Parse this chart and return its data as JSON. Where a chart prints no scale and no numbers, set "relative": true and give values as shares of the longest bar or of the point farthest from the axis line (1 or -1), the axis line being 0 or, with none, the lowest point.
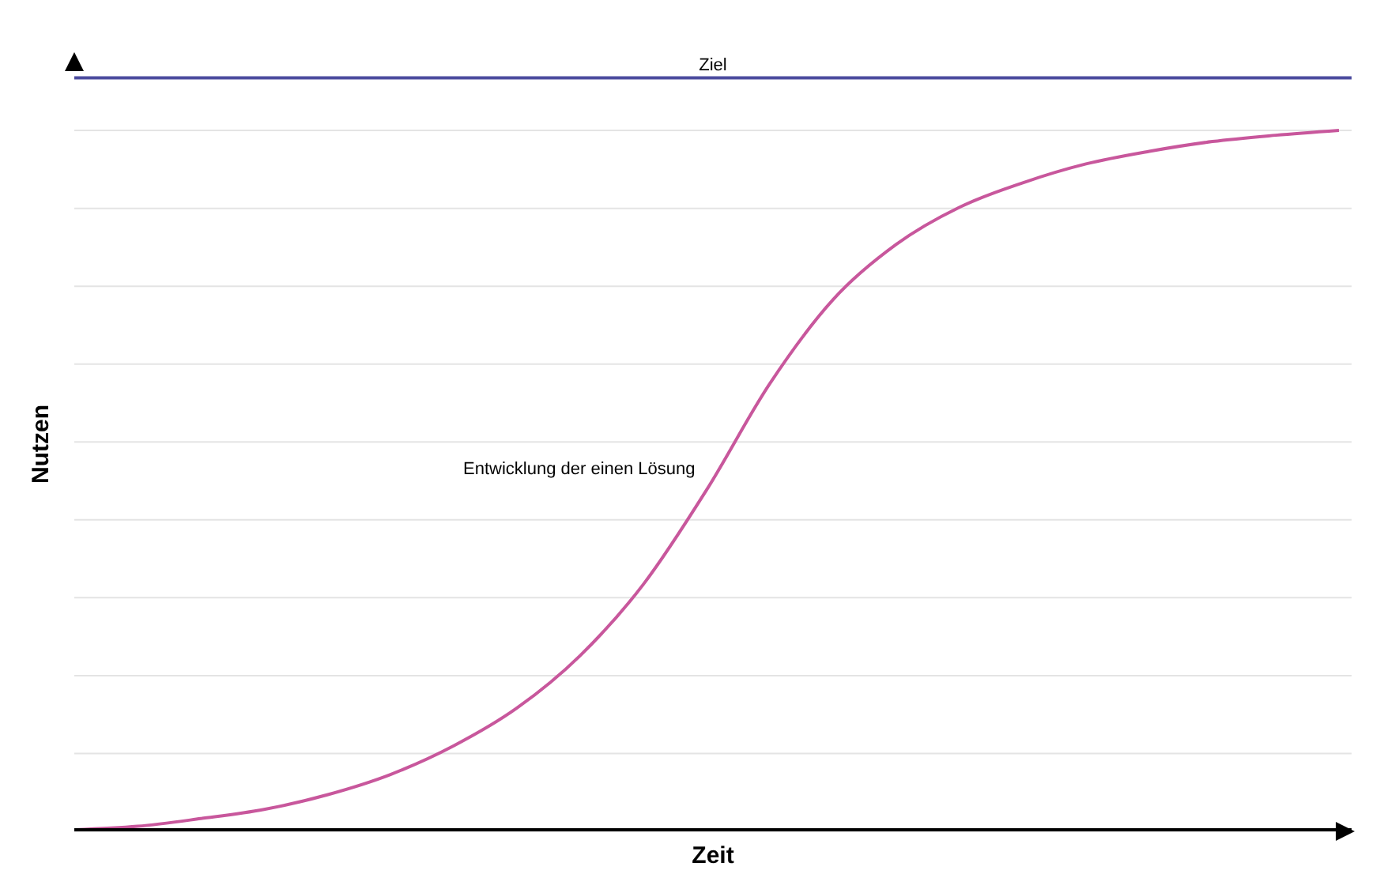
{
  "chart_data": {
    "type": "line",
    "relative": true,
    "xlabel": "Zeit",
    "ylabel": "Nutzen",
    "grid": "y",
    "legend": false,
    "marker": "none",
    "line_style": "solid",
    "categories": [
      null,
      null,
      null,
      null,
      null,
      null,
      null,
      null,
      null,
      null,
      null,
      null,
      null,
      null,
      null,
      null,
      null,
      null,
      null,
      null,
      null
    ],
    "series": [
      {
        "name": "Entwicklung der einen Lösung",
        "color": "#c8579c",
        "values": [
          0,
          0.005,
          0.016,
          0.029,
          0.05,
          0.079,
          0.12,
          0.174,
          0.249,
          0.351,
          0.486,
          0.638,
          0.758,
          0.837,
          0.89,
          0.925,
          0.952,
          0.97,
          0.984,
          0.993,
          1
        ]
      }
    ],
    "ref_lines": [
      {
        "axis": "y",
        "value": 1.075,
        "label": "Ziel",
        "color": "#4b4b9e",
        "line_style": "solid"
      }
    ]
  }
}
